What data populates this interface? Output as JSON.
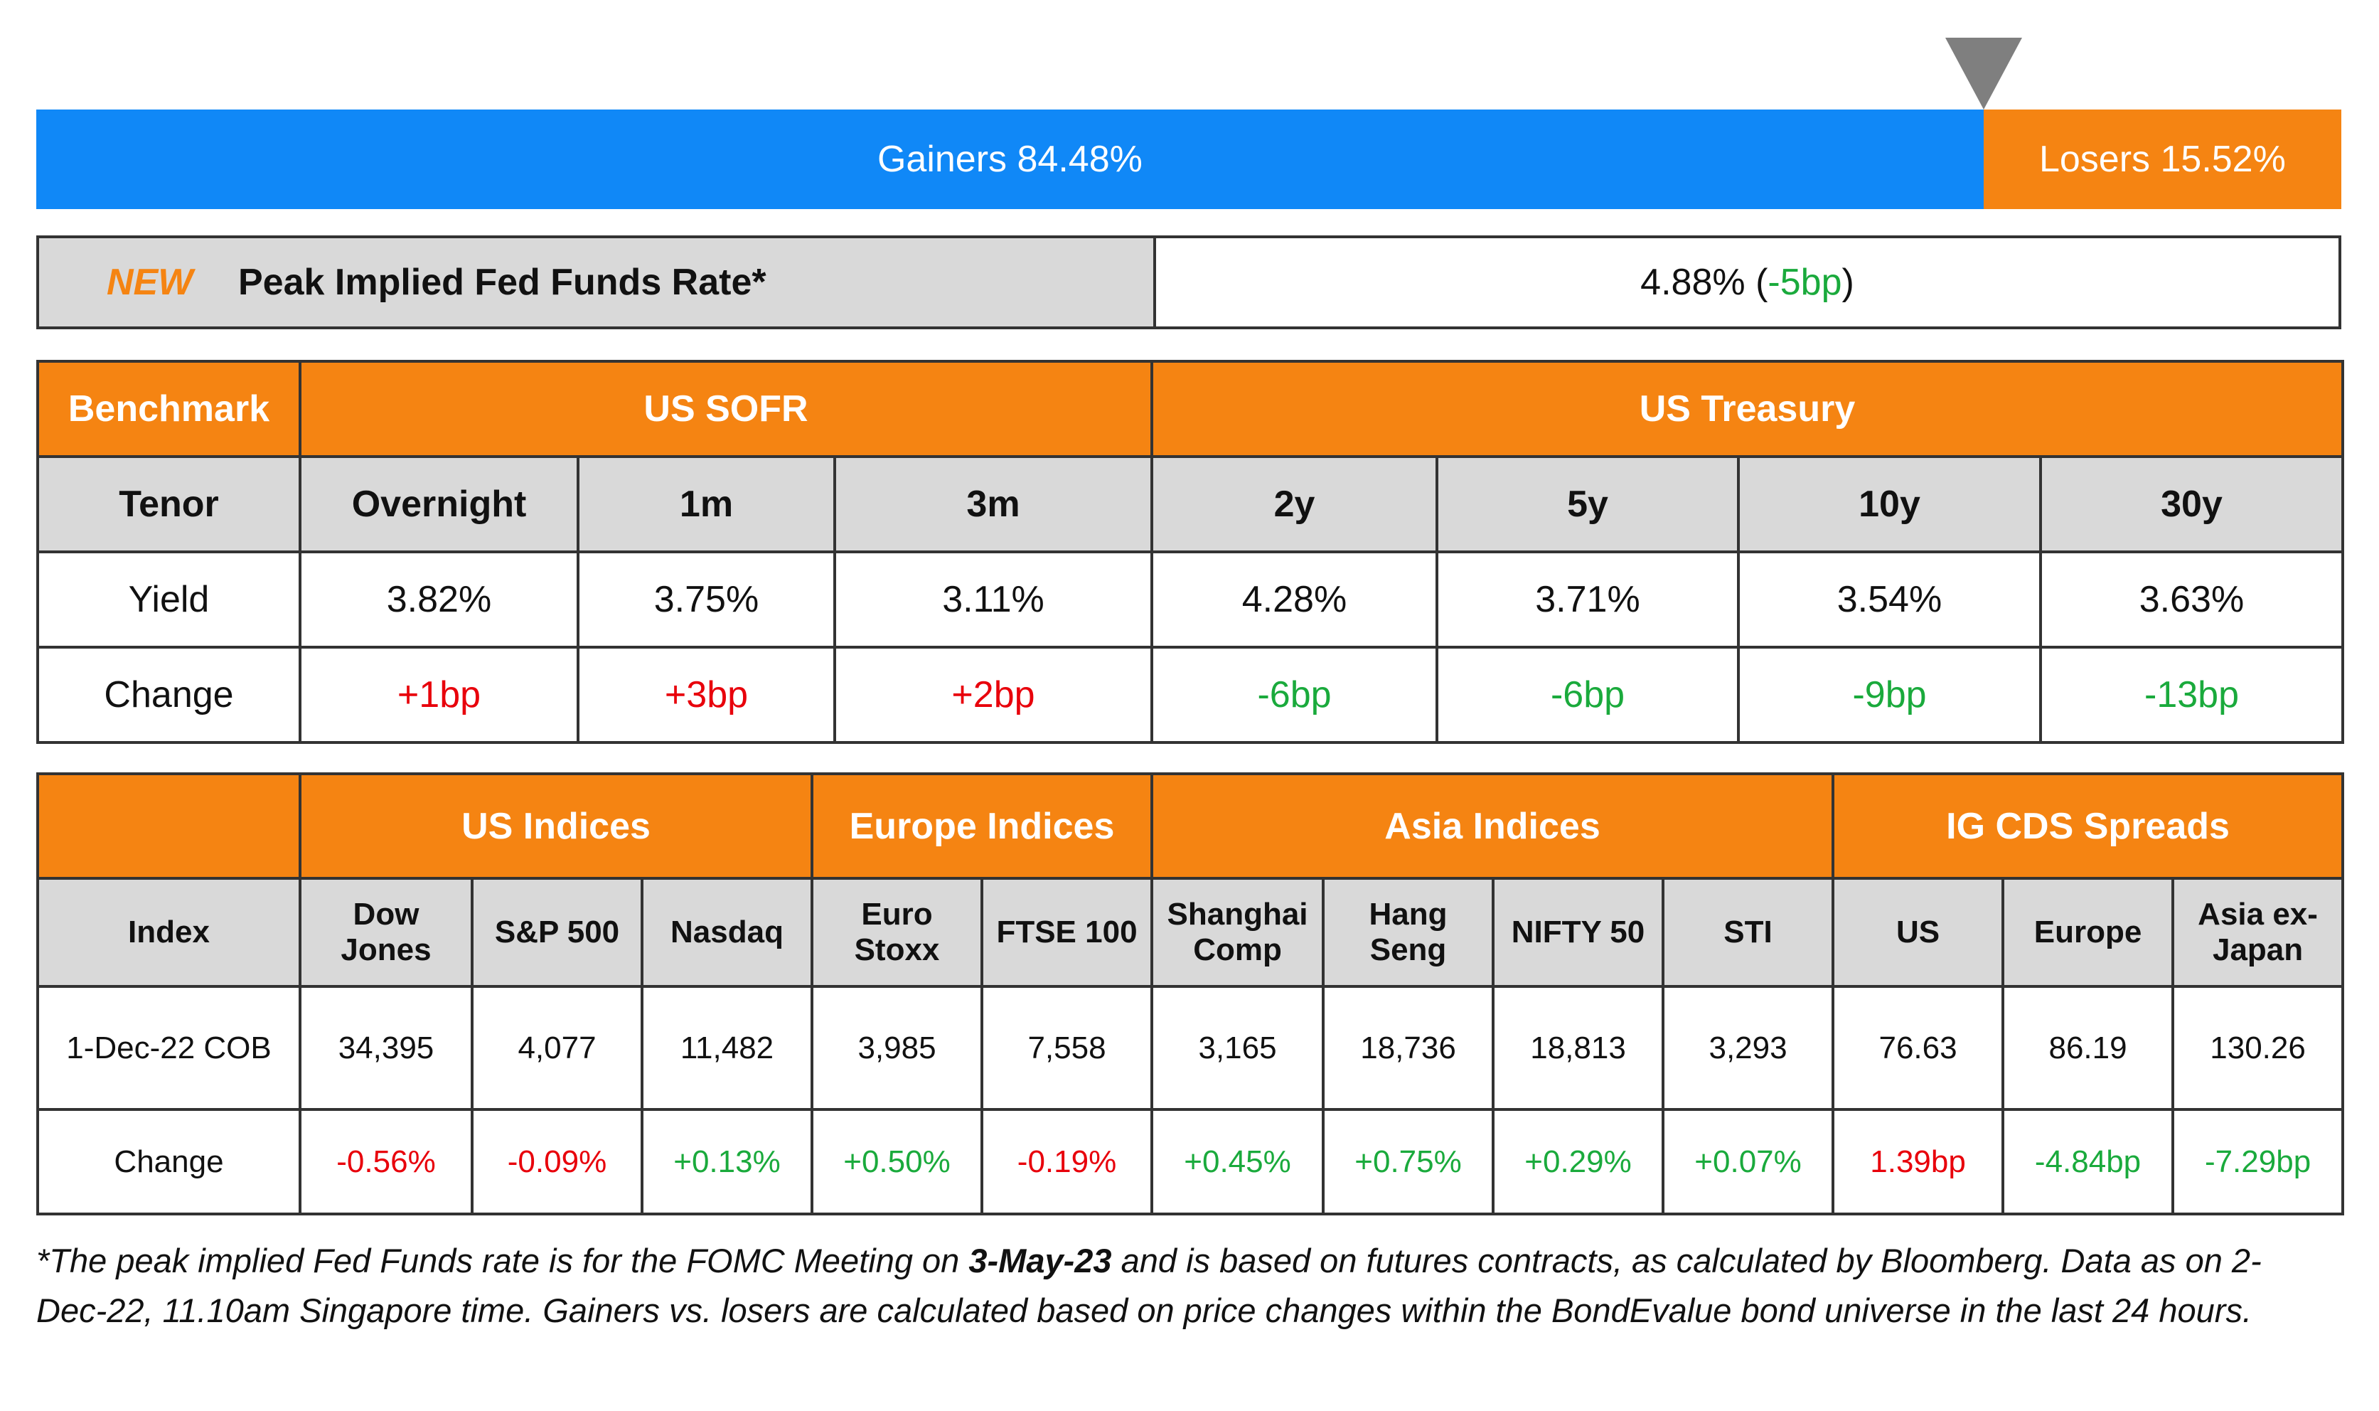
{
  "market_breadth": {
    "gainers": {
      "label": "Gainers 84.48%",
      "value": 84.48,
      "color": "#1088f7"
    },
    "losers": {
      "label": "Losers 15.52%",
      "value": 15.52,
      "color": "#f58412"
    }
  },
  "fed_funds": {
    "tag": "NEW",
    "label": "Peak Implied Fed Funds Rate*",
    "rate": "4.88%",
    "open": "(",
    "change": "-5bp",
    "close": ")",
    "change_color": "#1aaa3c"
  },
  "rates_table": {
    "corner": "Benchmark",
    "tenor_label": "Tenor",
    "yield_label": "Yield",
    "change_label": "Change",
    "groups": [
      {
        "name": "US SOFR",
        "columns": [
          {
            "tenor": "Overnight",
            "yield": "3.82%",
            "change": "+1bp",
            "color": "#e8000b"
          },
          {
            "tenor": "1m",
            "yield": "3.75%",
            "change": "+3bp",
            "color": "#e8000b"
          },
          {
            "tenor": "3m",
            "yield": "3.11%",
            "change": "+2bp",
            "color": "#e8000b"
          }
        ]
      },
      {
        "name": "US Treasury",
        "columns": [
          {
            "tenor": "2y",
            "yield": "4.28%",
            "change": "-6bp",
            "color": "#1aaa3c"
          },
          {
            "tenor": "5y",
            "yield": "3.71%",
            "change": "-6bp",
            "color": "#1aaa3c"
          },
          {
            "tenor": "10y",
            "yield": "3.54%",
            "change": "-9bp",
            "color": "#1aaa3c"
          },
          {
            "tenor": "30y",
            "yield": "3.63%",
            "change": "-13bp",
            "color": "#1aaa3c"
          }
        ]
      }
    ]
  },
  "indices_table": {
    "index_label": "Index",
    "cob_label": "1-Dec-22 COB",
    "change_label": "Change",
    "groups": [
      {
        "name": "US Indices",
        "columns": [
          {
            "name": "Dow Jones",
            "cob": "34,395",
            "change": "-0.56%",
            "color": "#e8000b"
          },
          {
            "name": "S&P 500",
            "cob": "4,077",
            "change": "-0.09%",
            "color": "#e8000b"
          },
          {
            "name": "Nasdaq",
            "cob": "11,482",
            "change": "+0.13%",
            "color": "#1aaa3c"
          }
        ]
      },
      {
        "name": "Europe Indices",
        "columns": [
          {
            "name": "Euro Stoxx",
            "cob": "3,985",
            "change": "+0.50%",
            "color": "#1aaa3c"
          },
          {
            "name": "FTSE 100",
            "cob": "7,558",
            "change": "-0.19%",
            "color": "#e8000b"
          }
        ]
      },
      {
        "name": "Asia Indices",
        "columns": [
          {
            "name": "Shanghai Comp",
            "cob": "3,165",
            "change": "+0.45%",
            "color": "#1aaa3c"
          },
          {
            "name": "Hang Seng",
            "cob": "18,736",
            "change": "+0.75%",
            "color": "#1aaa3c"
          },
          {
            "name": "NIFTY 50",
            "cob": "18,813",
            "change": "+0.29%",
            "color": "#1aaa3c"
          },
          {
            "name": "STI",
            "cob": "3,293",
            "change": "+0.07%",
            "color": "#1aaa3c"
          }
        ]
      },
      {
        "name": "IG CDS Spreads",
        "columns": [
          {
            "name": "US",
            "cob": "76.63",
            "change": "1.39bp",
            "color": "#e8000b"
          },
          {
            "name": "Europe",
            "cob": "86.19",
            "change": "-4.84bp",
            "color": "#1aaa3c"
          },
          {
            "name": "Asia ex-Japan",
            "cob": "130.26",
            "change": "-7.29bp",
            "color": "#1aaa3c"
          }
        ]
      }
    ]
  },
  "footnote": {
    "before": "*The peak implied Fed Funds rate is for the FOMC Meeting on ",
    "bold": "3-May-23",
    "after": " and is based on futures contracts, as calculated by Bloomberg. Data as on 2-Dec-22, 11.10am Singapore time. Gainers vs. losers are calculated based on price changes within the BondEvalue bond universe in the last 24 hours."
  }
}
